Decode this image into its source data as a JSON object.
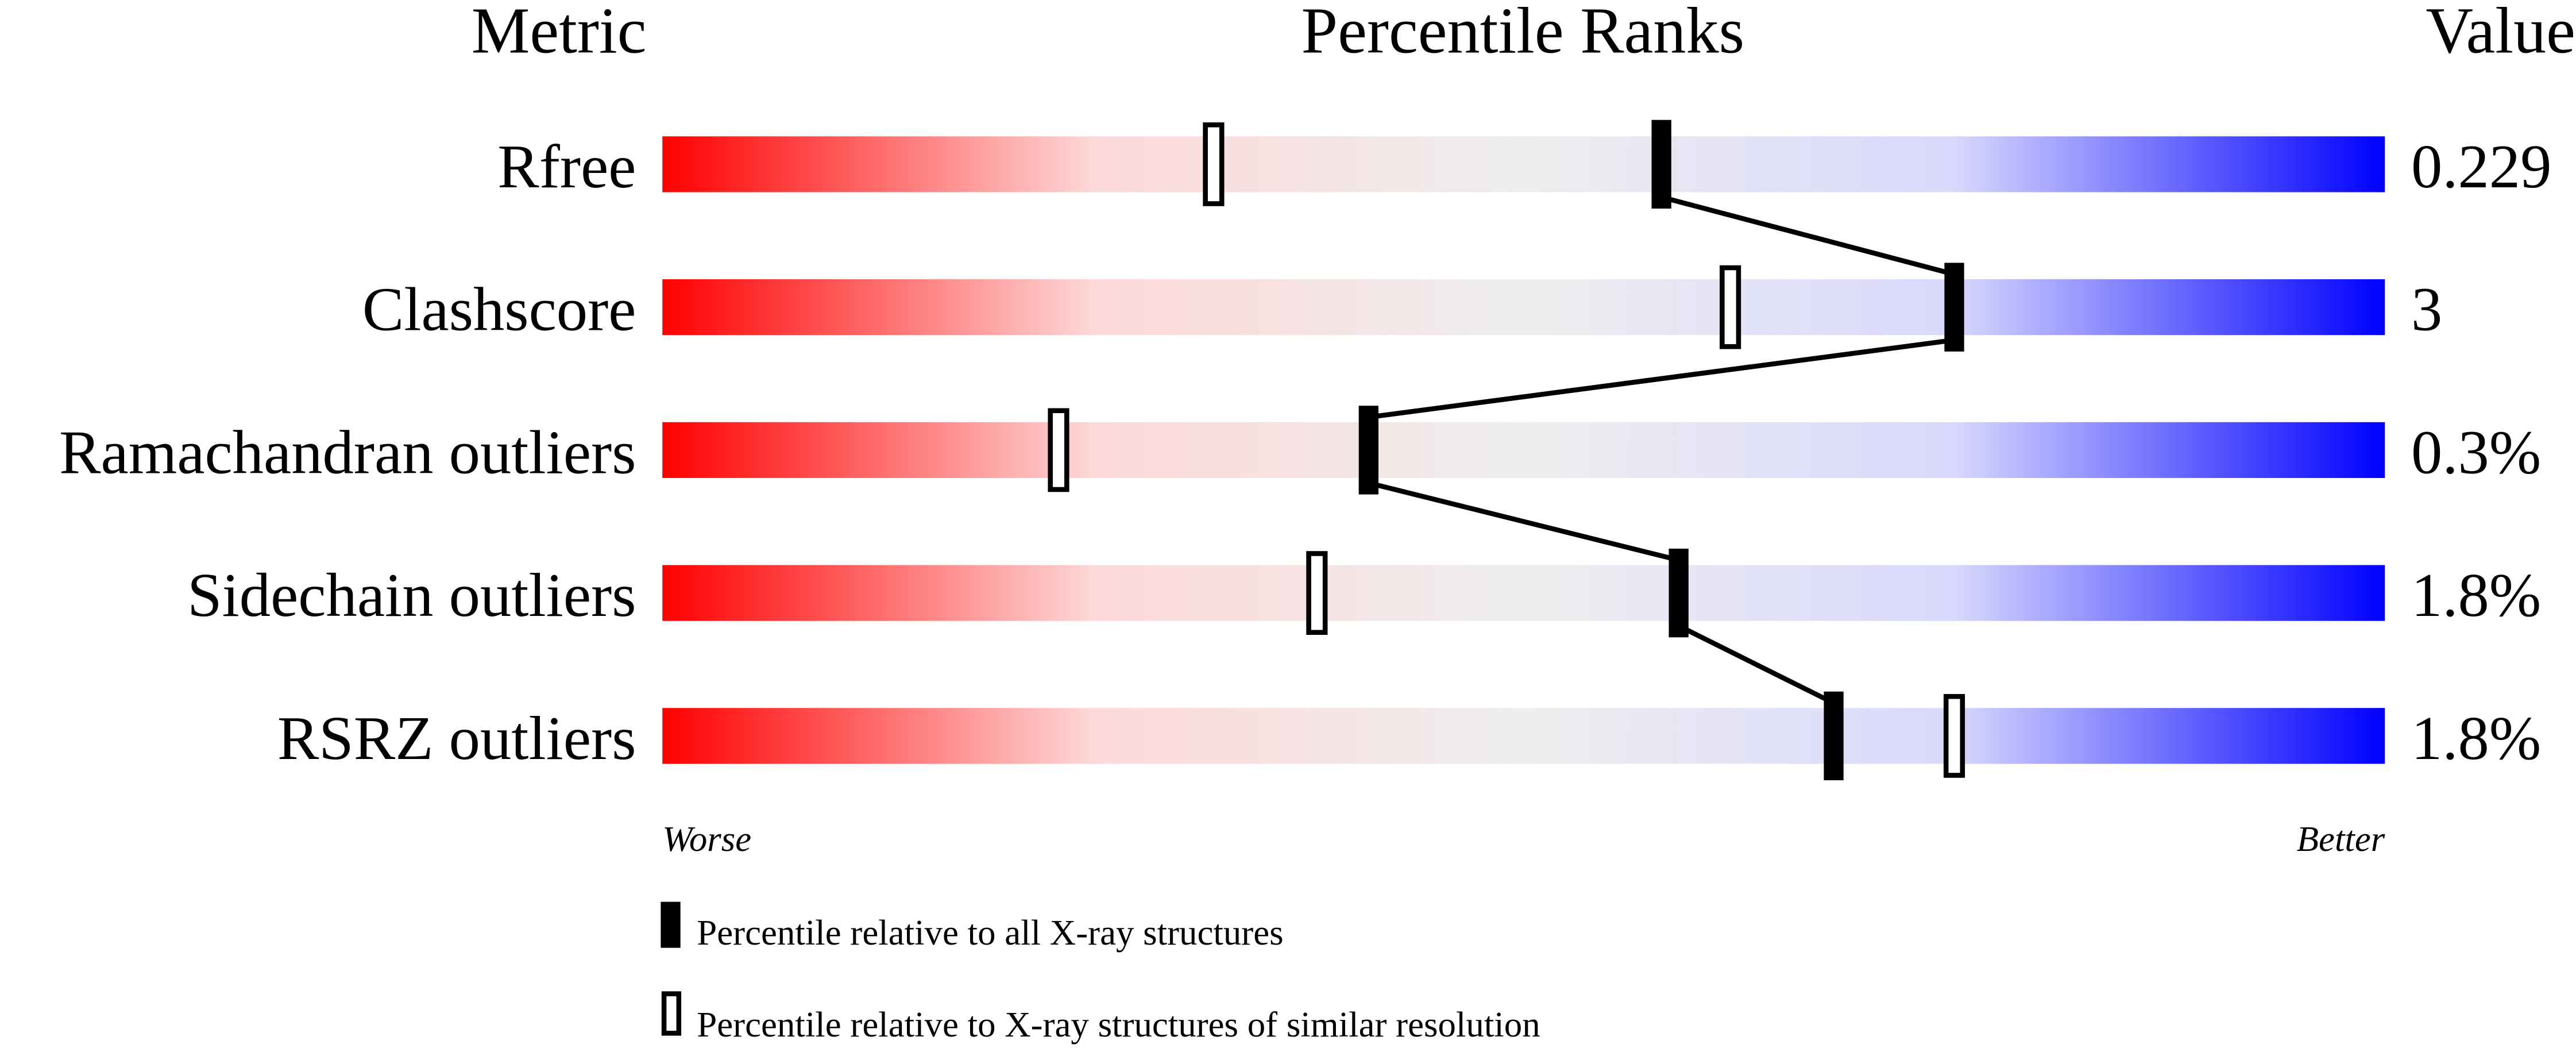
{
  "chart_data": {
    "type": "percentile-bar",
    "headers": {
      "metric": "Metric",
      "ranks": "Percentile Ranks",
      "value": "Value"
    },
    "xlim": [
      0,
      100
    ],
    "scale_labels": {
      "left": "Worse",
      "right": "Better"
    },
    "gradient_colors": [
      "#ff0000",
      "#fdd8d8",
      "#eeeeee",
      "#d8d8fd",
      "#0000ff"
    ],
    "metrics": [
      {
        "name": "Rfree",
        "value": "0.229",
        "percentile_all": 58,
        "percentile_similar": 32
      },
      {
        "name": "Clashscore",
        "value": "3",
        "percentile_all": 75,
        "percentile_similar": 62
      },
      {
        "name": "Ramachandran outliers",
        "value": "0.3%",
        "percentile_all": 41,
        "percentile_similar": 23
      },
      {
        "name": "Sidechain outliers",
        "value": "1.8%",
        "percentile_all": 59,
        "percentile_similar": 38
      },
      {
        "name": "RSRZ outliers",
        "value": "1.8%",
        "percentile_all": 68,
        "percentile_similar": 75
      }
    ],
    "legend": [
      {
        "marker": "filled",
        "label": "Percentile relative to all X-ray structures"
      },
      {
        "marker": "open",
        "label": "Percentile relative to X-ray structures of similar resolution"
      }
    ]
  }
}
